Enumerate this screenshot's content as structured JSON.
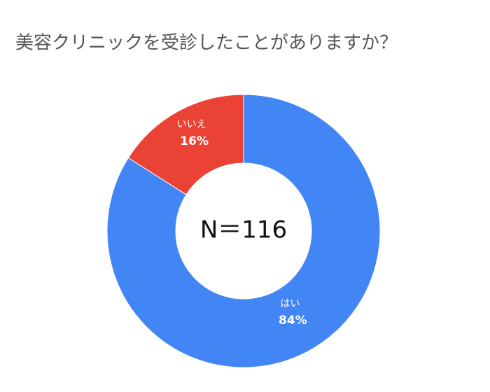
{
  "chart_data": {
    "type": "donut",
    "title": "美容クリニックを受診したことがありますか？",
    "center_label": "N＝116",
    "categories": [
      "はい",
      "いいえ"
    ],
    "values": [
      84,
      16
    ],
    "value_labels": [
      "84%",
      "16%"
    ],
    "colors": [
      "#4285f4",
      "#ea4335"
    ]
  }
}
